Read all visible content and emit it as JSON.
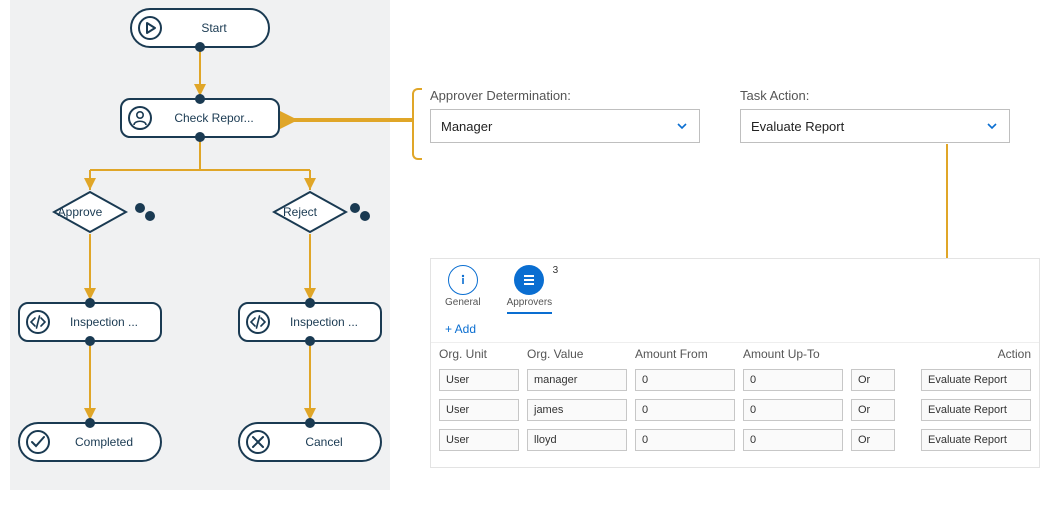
{
  "colors": {
    "node_border": "#1a3a52",
    "flow_line": "#e0a628",
    "accent": "#0a6ed1",
    "panel_border": "#e3e3e3",
    "flow_bg": "#f0f1f2"
  },
  "flow": {
    "start": {
      "label": "Start",
      "icon": "play-icon"
    },
    "check": {
      "label": "Check Repor...",
      "icon": "person-icon"
    },
    "approve": {
      "label": "Approve"
    },
    "reject": {
      "label": "Reject"
    },
    "inspection_left": {
      "label": "Inspection ...",
      "icon": "code-icon"
    },
    "inspection_right": {
      "label": "Inspection ...",
      "icon": "code-icon"
    },
    "completed": {
      "label": "Completed",
      "icon": "check-icon"
    },
    "cancel": {
      "label": "Cancel",
      "icon": "x-icon"
    }
  },
  "form": {
    "approver_label": "Approver Determination:",
    "approver_value": "Manager",
    "task_label": "Task Action:",
    "task_value": "Evaluate Report"
  },
  "panel": {
    "tabs": {
      "general": "General",
      "approvers": "Approvers",
      "approvers_count": "3"
    },
    "add_label": "+ Add",
    "headers": {
      "org_unit": "Org. Unit",
      "org_value": "Org. Value",
      "amount_from": "Amount From",
      "amount_upto": "Amount Up-To",
      "action": "Action"
    },
    "rows": [
      {
        "org_unit": "User",
        "org_value": "manager",
        "amount_from": "0",
        "amount_upto": "0",
        "or": "Or",
        "action": "Evaluate Report"
      },
      {
        "org_unit": "User",
        "org_value": "james",
        "amount_from": "0",
        "amount_upto": "0",
        "or": "Or",
        "action": "Evaluate Report"
      },
      {
        "org_unit": "User",
        "org_value": "lloyd",
        "amount_from": "0",
        "amount_upto": "0",
        "or": "Or",
        "action": "Evaluate Report"
      }
    ]
  }
}
